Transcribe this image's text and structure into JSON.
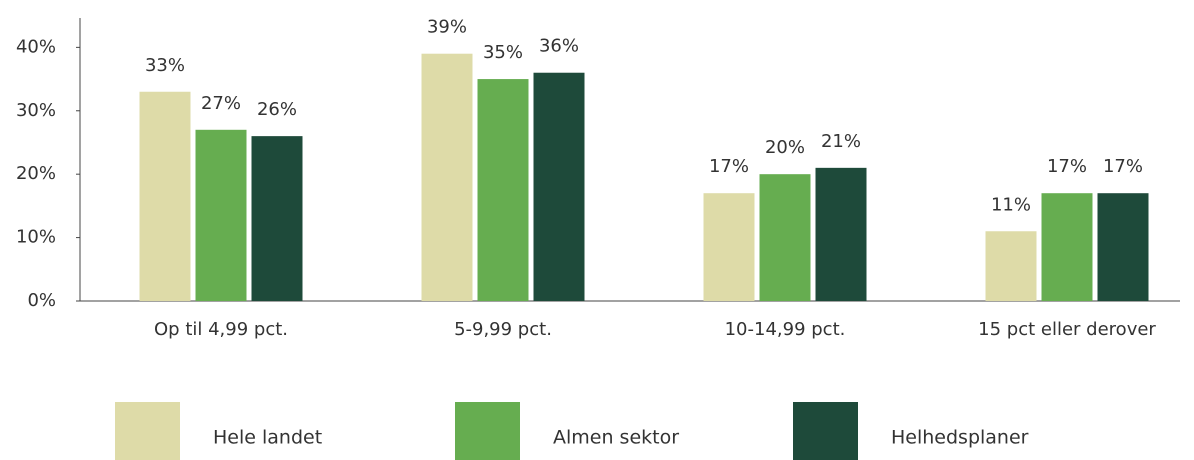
{
  "chart_data": {
    "type": "bar",
    "categories": [
      "Op til 4,99 pct.",
      "5-9,99 pct.",
      "10-14,99 pct.",
      "15 pct eller derover"
    ],
    "series": [
      {
        "name": "Hele landet",
        "color": "#dedba8",
        "values": [
          33,
          39,
          17,
          11
        ],
        "value_labels": [
          "33%",
          "39%",
          "17%",
          "11%"
        ]
      },
      {
        "name": "Almen sektor",
        "color": "#66ad50",
        "values": [
          27,
          35,
          20,
          17
        ],
        "value_labels": [
          "27%",
          "35%",
          "20%",
          "17%"
        ]
      },
      {
        "name": "Helhedsplaner",
        "color": "#1e4a3a",
        "values": [
          26,
          36,
          21,
          17
        ],
        "value_labels": [
          "26%",
          "36%",
          "21%",
          "17%"
        ]
      }
    ],
    "ylim": [
      0,
      44
    ],
    "yticks": [
      {
        "value": 0,
        "label": "0%"
      },
      {
        "value": 10,
        "label": "10%"
      },
      {
        "value": 20,
        "label": "20%"
      },
      {
        "value": 30,
        "label": "30%"
      },
      {
        "value": 40,
        "label": "40%"
      }
    ],
    "legend": "bottom"
  }
}
